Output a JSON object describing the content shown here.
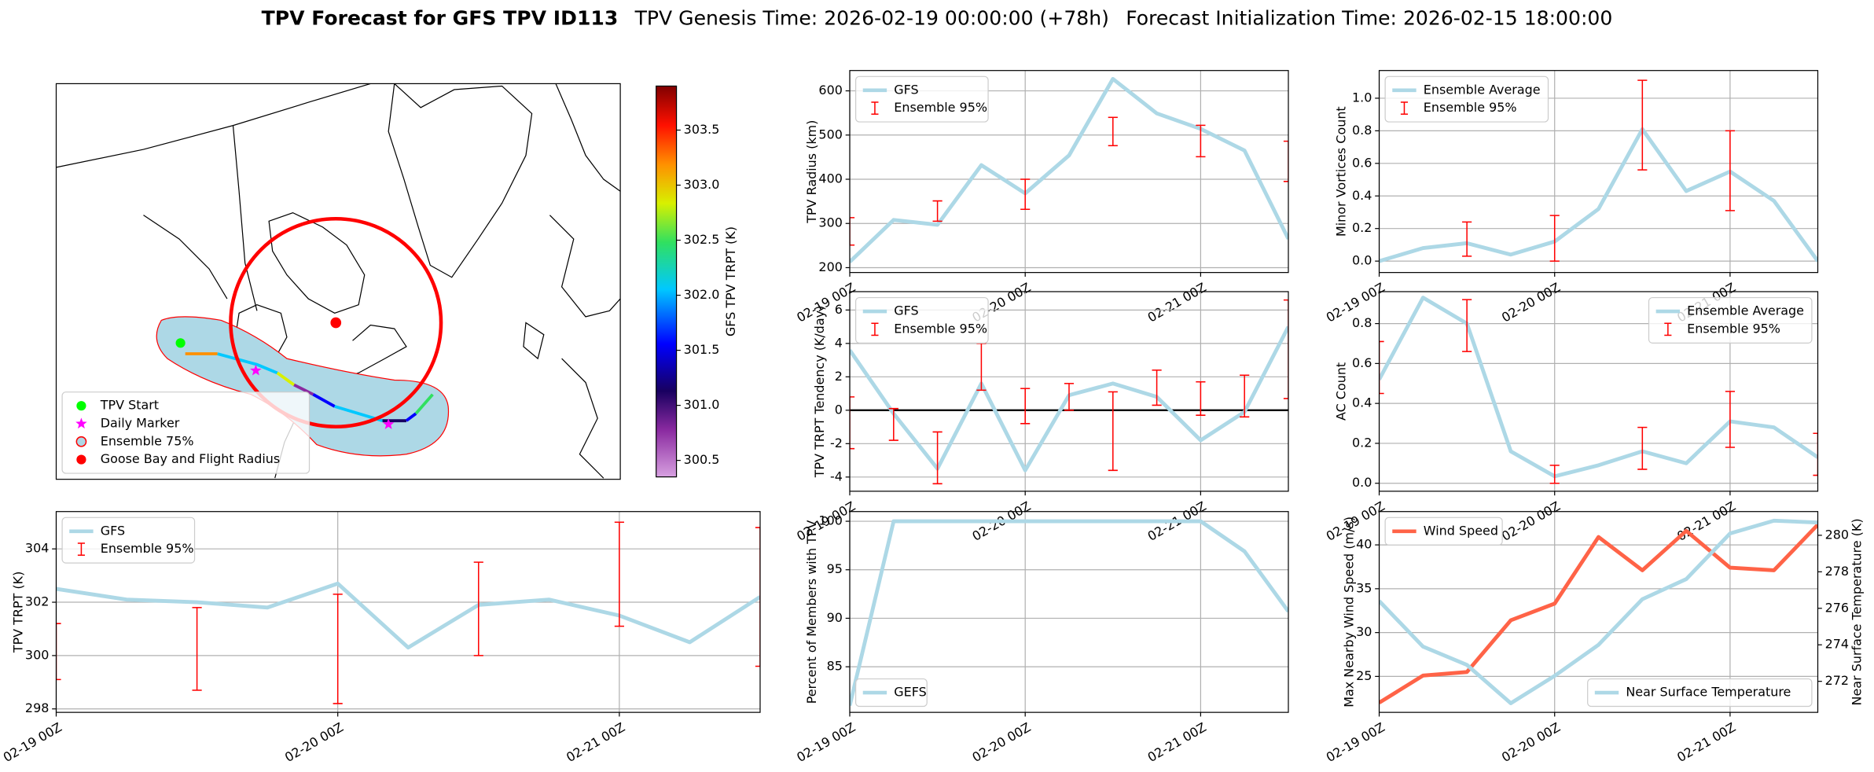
{
  "title": {
    "main": "TPV Forecast for GFS TPV ID113",
    "genesis": "TPV Genesis Time: 2026-02-19 00:00:00 (+78h)",
    "init": "Forecast Initialization Time: 2026-02-15 18:00:00"
  },
  "chart_data": [
    {
      "type": "map",
      "series": [
        {
          "name": "TPV Start",
          "color": "#00ff00"
        },
        {
          "name": "Daily Marker",
          "color": "#ff00ff"
        },
        {
          "name": "Ensemble 75%",
          "color": "#add8e6"
        },
        {
          "name": "Goose Bay and Flight Radius",
          "color": "#ff0000"
        }
      ],
      "legend": "lower left",
      "colorbar": {
        "label": "GFS TPV TRPT (K)",
        "lim": [
          300.35,
          303.9
        ],
        "ticks": [
          300.5,
          {
            "value": 301,
            "label": "301.0"
          },
          301.5,
          {
            "value": 302,
            "label": "302.0"
          },
          302.5,
          {
            "value": 303,
            "label": "303.0"
          },
          303.5
        ]
      }
    },
    {
      "type": "line",
      "ylabel": "TPV TRPT (K)",
      "categories": [
        "02-19 00Z",
        null,
        null,
        null,
        "02-20 00Z",
        null,
        null,
        null,
        "02-21 00Z",
        null,
        null
      ],
      "series": [
        {
          "name": "GFS",
          "color": "#add8e6",
          "values": [
            302.5,
            302.1,
            302.0,
            301.8,
            302.7,
            300.3,
            301.9,
            302.1,
            301.5,
            300.5,
            302.2
          ]
        },
        {
          "name": "Ensemble 95%",
          "color": "#ff0000",
          "kind": "errorbar",
          "high": [
            301.2,
            null,
            301.8,
            null,
            302.3,
            null,
            303.5,
            null,
            305.0,
            null,
            304.8
          ],
          "low": [
            299.1,
            null,
            298.7,
            null,
            298.2,
            null,
            300.0,
            null,
            301.1,
            null,
            299.6
          ]
        }
      ],
      "ylim": [
        297.87,
        305.4
      ],
      "yticks": [
        298,
        300,
        302,
        304
      ],
      "grid": true,
      "legend": "upper left"
    },
    {
      "type": "line",
      "ylabel": "TPV Radius (km)",
      "categories": [
        "02-19 00Z",
        null,
        null,
        null,
        "02-20 00Z",
        null,
        null,
        null,
        "02-21 00Z",
        null,
        null
      ],
      "series": [
        {
          "name": "GFS",
          "color": "#add8e6",
          "values": [
            213,
            308,
            297,
            432,
            368,
            454,
            627,
            549,
            514,
            465,
            265
          ]
        },
        {
          "name": "Ensemble 95%",
          "color": "#ff0000",
          "kind": "errorbar",
          "high": [
            313,
            null,
            351,
            null,
            400,
            null,
            540,
            null,
            522,
            null,
            486
          ],
          "low": [
            251,
            null,
            305,
            null,
            332,
            null,
            476,
            null,
            451,
            null,
            395
          ]
        }
      ],
      "ylim": [
        189,
        646
      ],
      "yticks": [
        200,
        300,
        400,
        500,
        600
      ],
      "grid": true,
      "legend": "upper left"
    },
    {
      "type": "line",
      "ylabel": "TPV TRPT Tendency (K/day)",
      "categories": [
        "02-19 00Z",
        null,
        null,
        null,
        "02-20 00Z",
        null,
        null,
        null,
        "02-21 00Z",
        null,
        null
      ],
      "series": [
        {
          "name": "GFS",
          "color": "#add8e6",
          "values": [
            3.6,
            -0.2,
            -3.5,
            1.6,
            -3.6,
            0.9,
            1.6,
            0.8,
            -1.8,
            -0.1,
            5.0
          ]
        },
        {
          "name": "Ensemble 95%",
          "color": "#ff0000",
          "kind": "errorbar",
          "high": [
            0.8,
            0.1,
            -1.3,
            4.0,
            1.3,
            1.6,
            1.1,
            2.4,
            1.7,
            2.1,
            6.6
          ],
          "low": [
            -2.3,
            -1.8,
            -4.4,
            1.2,
            -0.8,
            0.0,
            -3.6,
            0.3,
            -0.3,
            -0.4,
            0.7
          ]
        }
      ],
      "ylim": [
        -4.85,
        7.1
      ],
      "yticks": [
        -4,
        -2,
        0,
        2,
        4,
        6
      ],
      "grid": true,
      "zero_line": true,
      "legend": "upper left"
    },
    {
      "type": "line",
      "ylabel": "Percent of Members with TPV",
      "categories": [
        "02-19 00Z",
        null,
        null,
        null,
        "02-20 00Z",
        null,
        null,
        null,
        "02-21 00Z",
        null,
        null
      ],
      "series": [
        {
          "name": "GEFS",
          "color": "#add8e6",
          "values": [
            81,
            100,
            100,
            100,
            100,
            100,
            100,
            100,
            100,
            96.9,
            90.7
          ]
        }
      ],
      "ylim": [
        80.3,
        101
      ],
      "yticks": [
        85,
        90,
        95,
        100
      ],
      "grid": true,
      "legend": "lower left"
    },
    {
      "type": "line",
      "ylabel": "Minor Vortices Count",
      "categories": [
        "02-19 00Z",
        null,
        null,
        null,
        "02-20 00Z",
        null,
        null,
        null,
        "02-21 00Z",
        null,
        null
      ],
      "series": [
        {
          "name": "Ensemble Average",
          "color": "#add8e6",
          "values": [
            0.0,
            0.08,
            0.11,
            0.04,
            0.12,
            0.32,
            0.81,
            0.43,
            0.55,
            0.37,
            0.0
          ]
        },
        {
          "name": "Ensemble 95%",
          "color": "#ff0000",
          "kind": "errorbar",
          "high": [
            null,
            null,
            0.24,
            null,
            0.28,
            null,
            1.11,
            null,
            0.8,
            null,
            null
          ],
          "low": [
            null,
            null,
            0.03,
            null,
            0.0,
            null,
            0.56,
            null,
            0.31,
            null,
            null
          ]
        }
      ],
      "ylim": [
        -0.07,
        1.17
      ],
      "yticks": [
        {
          "value": 0,
          "label": "0.0"
        },
        0.2,
        0.4,
        0.6,
        0.8,
        {
          "value": 1,
          "label": "1.0"
        }
      ],
      "grid": true,
      "legend": "upper left"
    },
    {
      "type": "line",
      "ylabel": "AC Count",
      "categories": [
        "02-19 00Z",
        null,
        null,
        null,
        "02-20 00Z",
        null,
        null,
        null,
        "02-21 00Z",
        null,
        null
      ],
      "series": [
        {
          "name": "Ensemble Average",
          "color": "#add8e6",
          "values": [
            0.52,
            0.93,
            0.8,
            0.16,
            0.035,
            0.09,
            0.16,
            0.1,
            0.31,
            0.28,
            0.13
          ]
        },
        {
          "name": "Ensemble 95%",
          "color": "#ff0000",
          "kind": "errorbar",
          "high": [
            0.71,
            null,
            0.92,
            null,
            0.09,
            null,
            0.28,
            null,
            0.46,
            null,
            0.25
          ],
          "low": [
            0.45,
            null,
            0.66,
            null,
            0.0,
            null,
            0.07,
            null,
            0.18,
            null,
            0.04
          ]
        }
      ],
      "ylim": [
        -0.04,
        0.96
      ],
      "yticks": [
        {
          "value": 0,
          "label": "0.0"
        },
        0.2,
        0.4,
        0.6,
        0.8
      ],
      "grid": true,
      "legend": "upper right"
    },
    {
      "type": "line",
      "ylabel": "Max Nearby Wind Speed (m/s)",
      "y2label": "Near Surface Temperature (K)",
      "ycolor": "#ff6347",
      "y2color": "#4169e1",
      "categories": [
        "02-19 00Z",
        null,
        null,
        null,
        "02-20 00Z",
        null,
        null,
        null,
        "02-21 00Z",
        null,
        null
      ],
      "series": [
        {
          "name": "Wind Speed",
          "color": "#ff6347",
          "legend": "upper left",
          "values": [
            22.0,
            25.1,
            25.5,
            31.4,
            33.3,
            40.9,
            37.1,
            41.6,
            37.4,
            37.1,
            42.3
          ]
        },
        {
          "name": "Near Surface Temperature",
          "color": "#add8e6",
          "axis": "y2",
          "legend": "lower right",
          "values": [
            276.4,
            273.9,
            272.9,
            270.8,
            272.3,
            274.0,
            276.5,
            277.6,
            280.1,
            280.8,
            280.7
          ]
        }
      ],
      "ylim": [
        20.9,
        43.8
      ],
      "yticks": [
        25,
        30,
        35,
        40
      ],
      "y2lim": [
        270.3,
        281.3
      ],
      "y2ticks": [
        272,
        274,
        276,
        278,
        280
      ],
      "grid": true
    }
  ]
}
